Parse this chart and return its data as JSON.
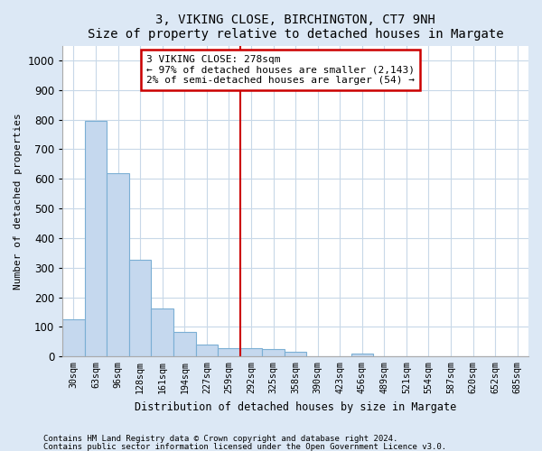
{
  "title": "3, VIKING CLOSE, BIRCHINGTON, CT7 9NH",
  "subtitle": "Size of property relative to detached houses in Margate",
  "xlabel": "Distribution of detached houses by size in Margate",
  "ylabel": "Number of detached properties",
  "bar_labels": [
    "30sqm",
    "63sqm",
    "96sqm",
    "128sqm",
    "161sqm",
    "194sqm",
    "227sqm",
    "259sqm",
    "292sqm",
    "325sqm",
    "358sqm",
    "390sqm",
    "423sqm",
    "456sqm",
    "489sqm",
    "521sqm",
    "554sqm",
    "587sqm",
    "620sqm",
    "652sqm",
    "685sqm"
  ],
  "bar_values": [
    125,
    795,
    620,
    328,
    163,
    82,
    40,
    28,
    28,
    25,
    15,
    0,
    0,
    10,
    0,
    0,
    0,
    0,
    0,
    0,
    0
  ],
  "bar_color": "#c5d8ee",
  "bar_edge_color": "#7bafd4",
  "vline_x": 7.5,
  "vline_color": "#cc0000",
  "annotation_title": "3 VIKING CLOSE: 278sqm",
  "annotation_line1": "← 97% of detached houses are smaller (2,143)",
  "annotation_line2": "2% of semi-detached houses are larger (54) →",
  "annotation_box_color": "#ffffff",
  "annotation_box_edge": "#cc0000",
  "ylim": [
    0,
    1050
  ],
  "yticks": [
    0,
    100,
    200,
    300,
    400,
    500,
    600,
    700,
    800,
    900,
    1000
  ],
  "footnote1": "Contains HM Land Registry data © Crown copyright and database right 2024.",
  "footnote2": "Contains public sector information licensed under the Open Government Licence v3.0.",
  "fig_bg_color": "#dce8f5",
  "plot_bg_color": "#ffffff"
}
